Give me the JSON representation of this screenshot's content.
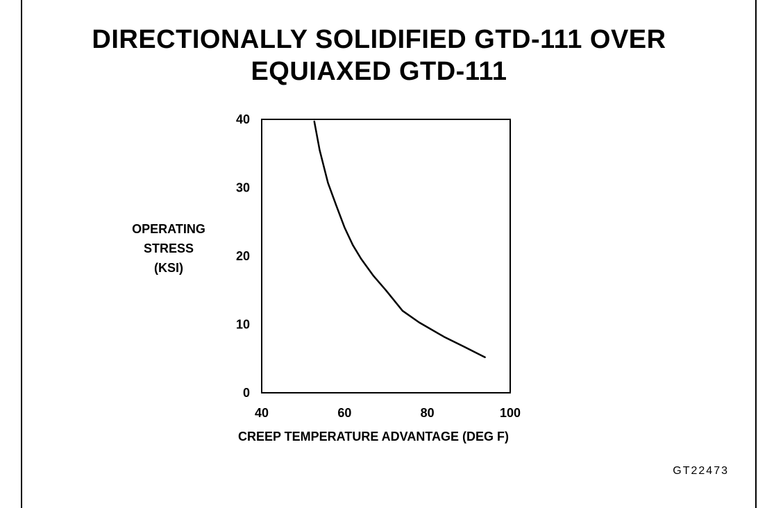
{
  "chart_data": {
    "type": "line",
    "title": [
      "DIRECTIONALLY SOLIDIFIED GTD-111 OVER",
      "EQUIAXED GTD-111"
    ],
    "xlabel": "CREEP TEMPERATURE ADVANTAGE (DEG F)",
    "ylabel": [
      "OPERATING",
      "STRESS",
      "(KSI)"
    ],
    "xlim": [
      40,
      100
    ],
    "ylim": [
      0,
      40
    ],
    "xticks": [
      "40",
      "60",
      "80",
      "100"
    ],
    "yticks": [
      "0",
      "10",
      "20",
      "30",
      "40"
    ],
    "grid": false,
    "series": [
      {
        "x": [
          52.7,
          54,
          56,
          58,
          60,
          62,
          64,
          67,
          70,
          74,
          78,
          84,
          89,
          93.9
        ],
        "y": [
          39.7,
          35.5,
          30.7,
          27.4,
          24.2,
          21.6,
          19.6,
          17.1,
          15.0,
          12.0,
          10.3,
          8.2,
          6.7,
          5.2
        ]
      }
    ]
  },
  "figure_code": "GT22473"
}
